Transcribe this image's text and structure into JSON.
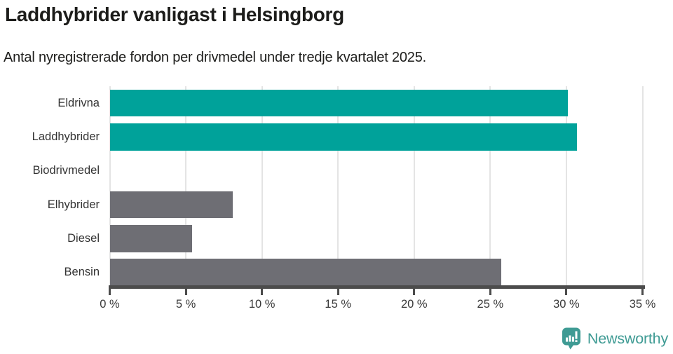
{
  "header": {
    "title": "Laddhybrider vanligast i Helsingborg",
    "subtitle": "Antal nyregistrerade fordon per drivmedel under tredje kvartalet 2025."
  },
  "chart_data": {
    "type": "bar",
    "orientation": "horizontal",
    "title": "Laddhybrider vanligast i Helsingborg",
    "subtitle": "Antal nyregistrerade fordon per drivmedel under tredje kvartalet 2025.",
    "categories": [
      "Eldrivna",
      "Laddhybrider",
      "Biodrivmedel",
      "Elhybrider",
      "Diesel",
      "Bensin"
    ],
    "values": [
      30.1,
      30.7,
      0,
      8.1,
      5.4,
      25.7
    ],
    "unit": "%",
    "xlim": [
      0,
      35
    ],
    "xtick_step": 5,
    "xticks": [
      "0 %",
      "5 %",
      "10 %",
      "15 %",
      "20 %",
      "25 %",
      "30 %",
      "35 %"
    ],
    "bar_colors": [
      "#00a29a",
      "#00a29a",
      "#00a29a",
      "#6e6e74",
      "#6e6e74",
      "#6e6e74"
    ],
    "highlight_color": "#00a29a",
    "default_color": "#6e6e74",
    "grid": true,
    "legend": "none",
    "ylabel": "",
    "xlabel": ""
  },
  "footer": {
    "brand": "Newsworthy",
    "brand_color": "#3f9b94",
    "logo_icon": "bar-chart-speech-bubble-icon"
  },
  "colors": {
    "grid": "#e4e4e4",
    "axis": "#4c4c4c",
    "title_text": "#1c1c1a",
    "label_text": "#333333"
  }
}
